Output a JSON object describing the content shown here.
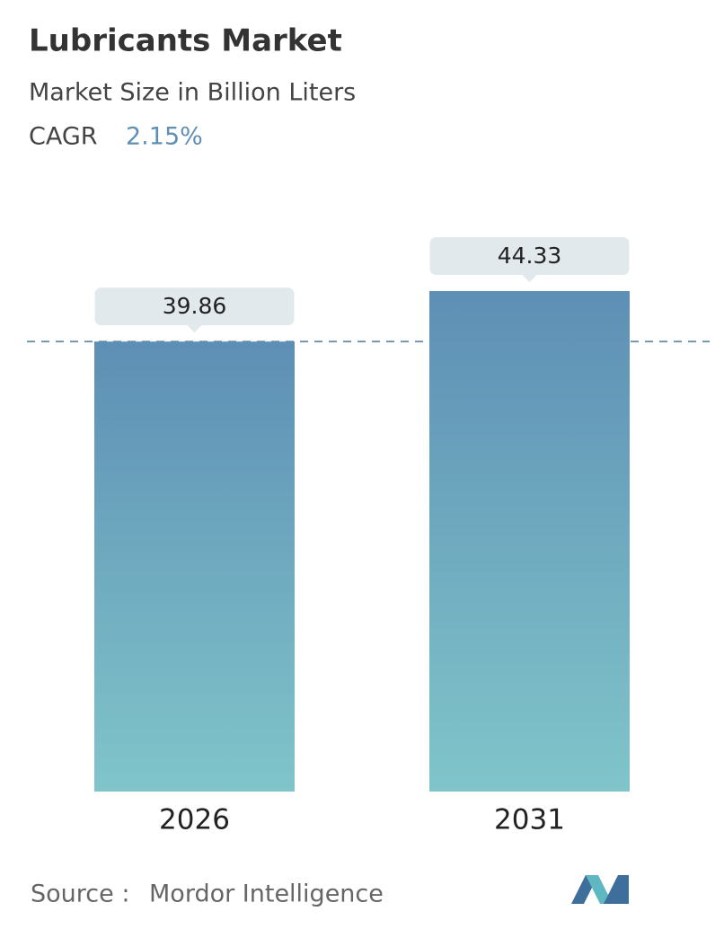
{
  "chart_data": {
    "type": "bar",
    "title": "Lubricants Market",
    "subtitle": "Market Size in Billion Liters",
    "cagr_label": "CAGR",
    "cagr_value": "2.15%",
    "categories": [
      "2026",
      "2031"
    ],
    "values": [
      39.86,
      44.33
    ],
    "color_top": "#5e8fb5",
    "color_bottom": "#80c5ca",
    "source_label": "Source :",
    "source": "Mordor Intelligence"
  }
}
